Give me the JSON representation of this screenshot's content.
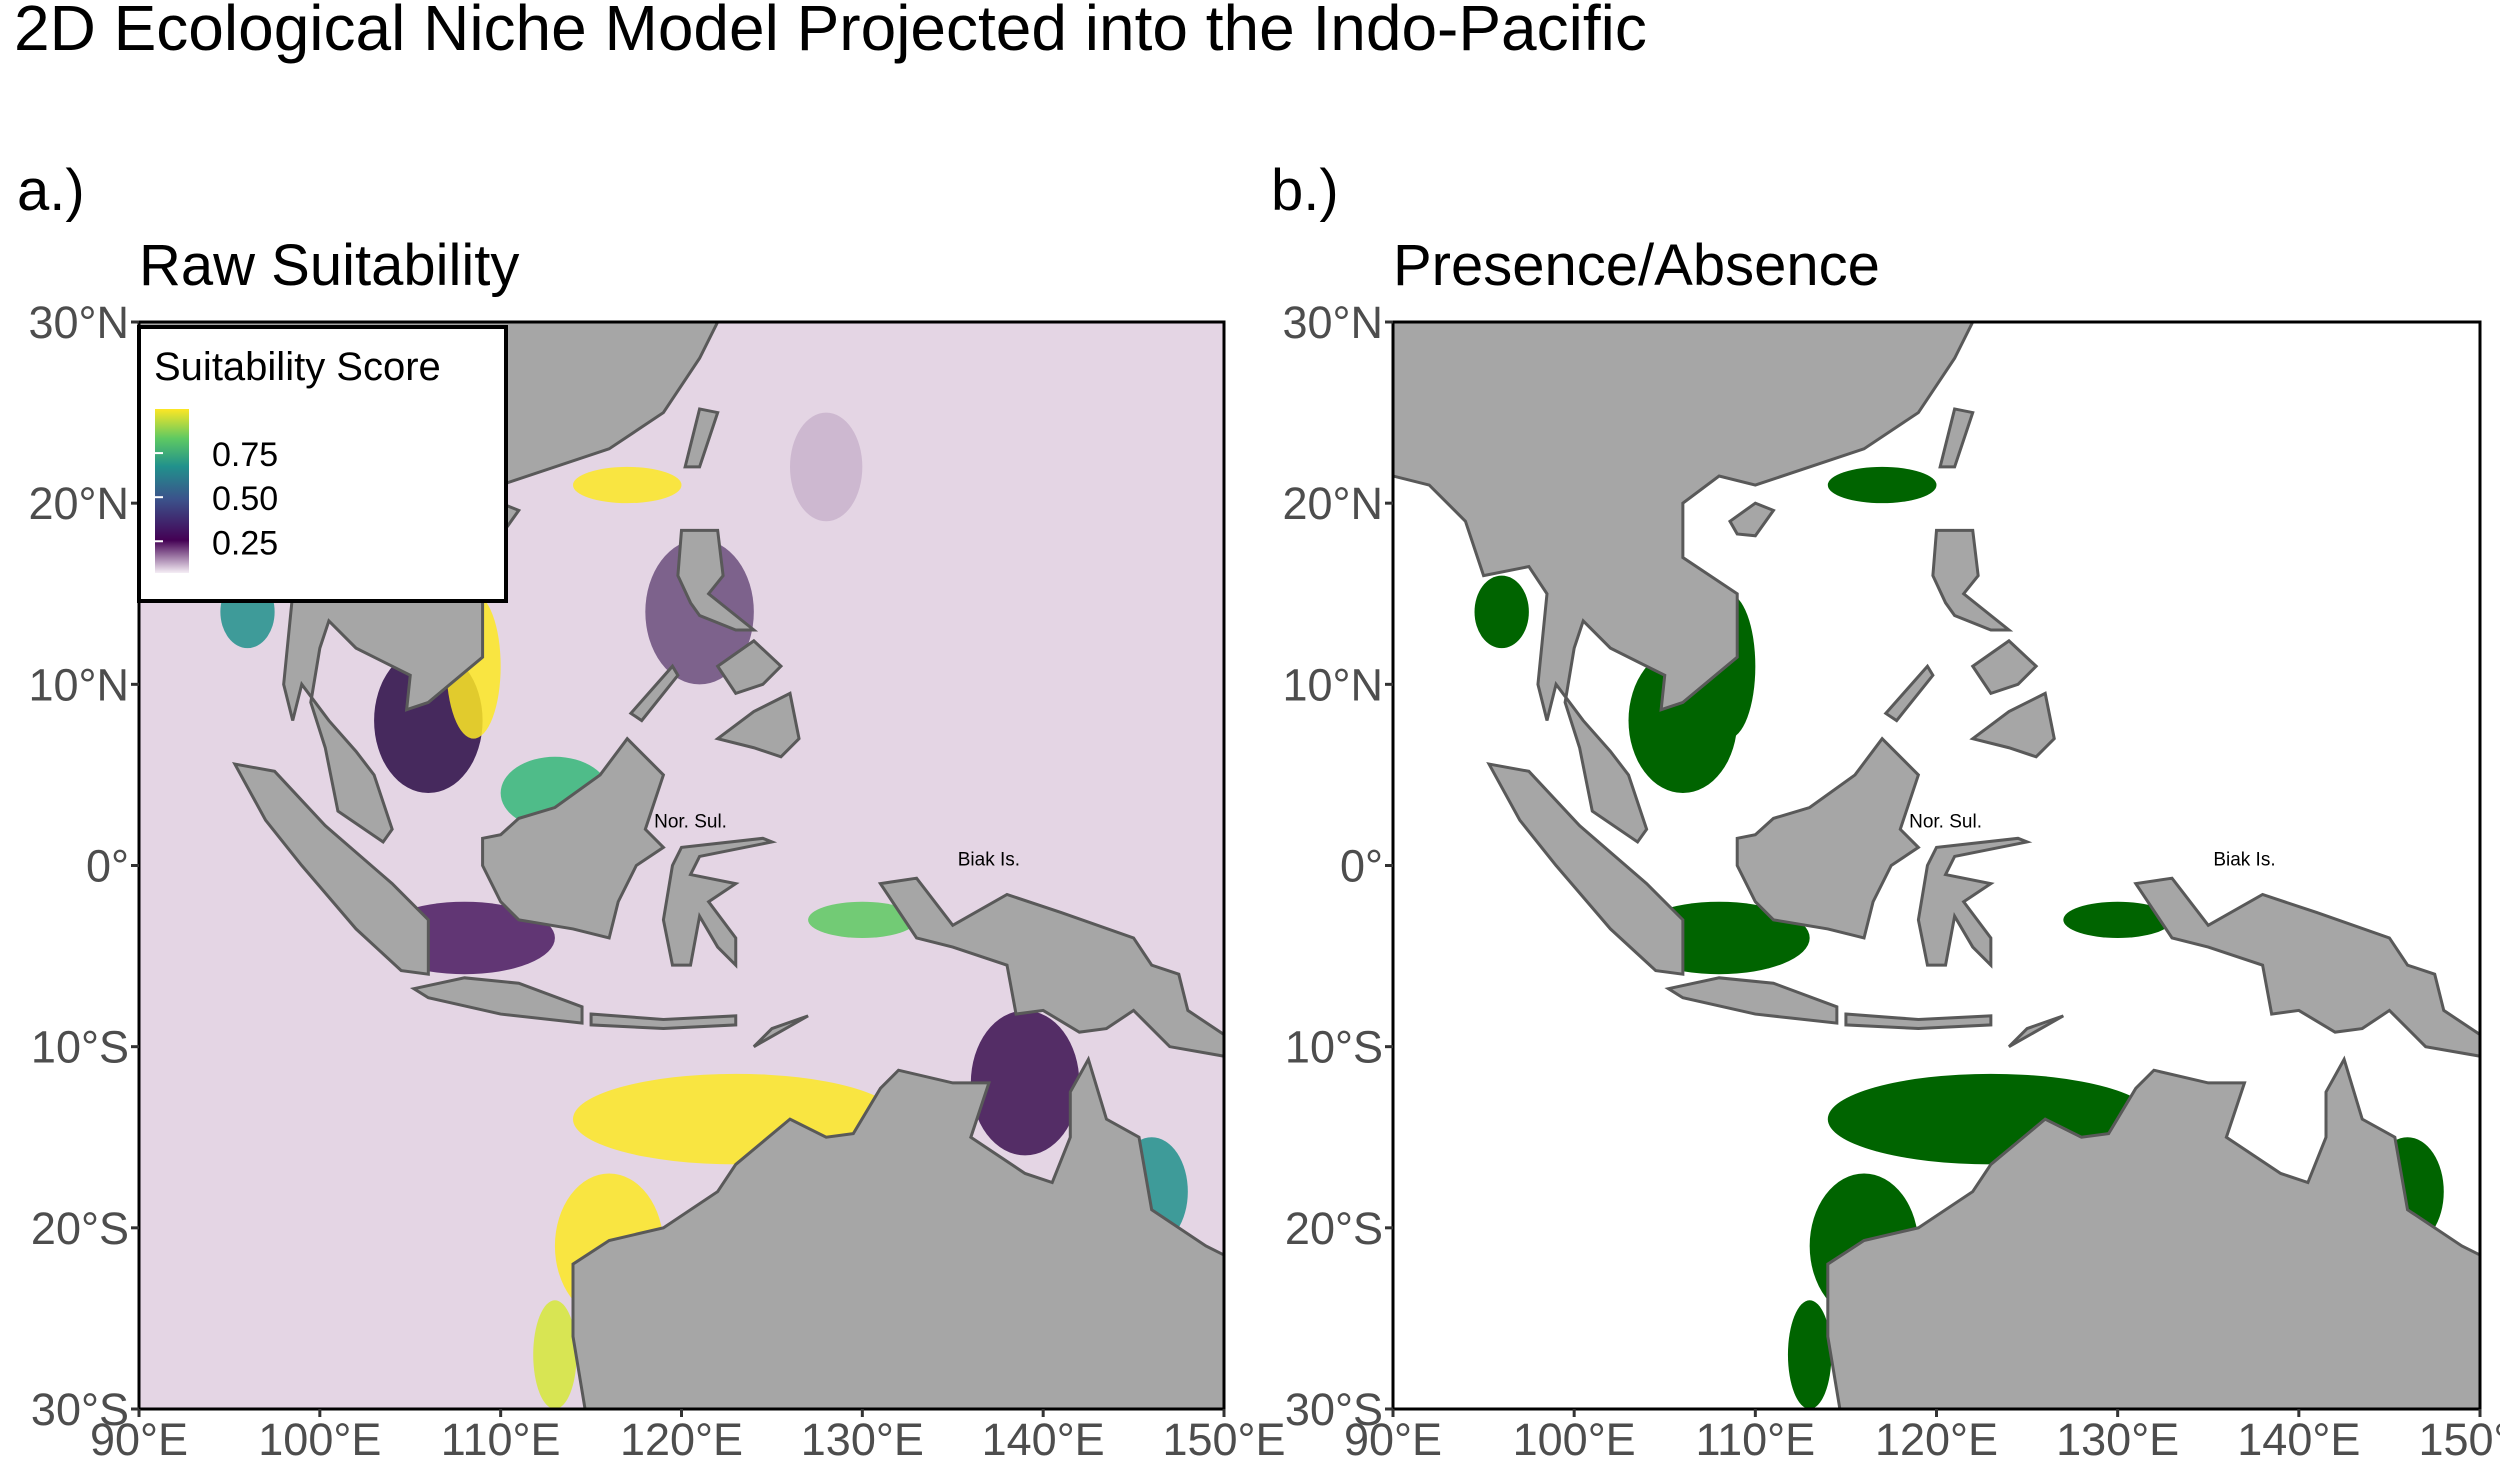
{
  "title": "2D Ecological Niche Model Projected into the Indo-Pacific",
  "axes": {
    "xlim": [
      90,
      150
    ],
    "ylim": [
      -30,
      30
    ],
    "xticks": [
      {
        "value": 90,
        "label": "90°E"
      },
      {
        "value": 100,
        "label": "100°E"
      },
      {
        "value": 110,
        "label": "110°E"
      },
      {
        "value": 120,
        "label": "120°E"
      },
      {
        "value": 130,
        "label": "130°E"
      },
      {
        "value": 140,
        "label": "140°E"
      },
      {
        "value": 150,
        "label": "150°E"
      }
    ],
    "yticks": [
      {
        "value": 30,
        "label": "30°N"
      },
      {
        "value": 20,
        "label": "20°N"
      },
      {
        "value": 10,
        "label": "10°N"
      },
      {
        "value": 0,
        "label": "0°"
      },
      {
        "value": -10,
        "label": "10°S"
      },
      {
        "value": -20,
        "label": "20°S"
      },
      {
        "value": -30,
        "label": "30°S"
      }
    ]
  },
  "panels": [
    {
      "label": "a.)",
      "subtitle": "Raw Suitability",
      "annotations": [
        "Nor. Sul.",
        "Biak Is."
      ],
      "legend": {
        "title": "Suitability Score",
        "lim": [
          0.07,
          1
        ],
        "ticks": [
          0.75,
          {
            "value": 0.5,
            "label": "0.50"
          },
          0.25
        ]
      }
    },
    {
      "label": "b.)",
      "subtitle": "Presence/Absence",
      "annotations": [
        "Nor. Sul.",
        "Biak Is."
      ]
    }
  ]
}
